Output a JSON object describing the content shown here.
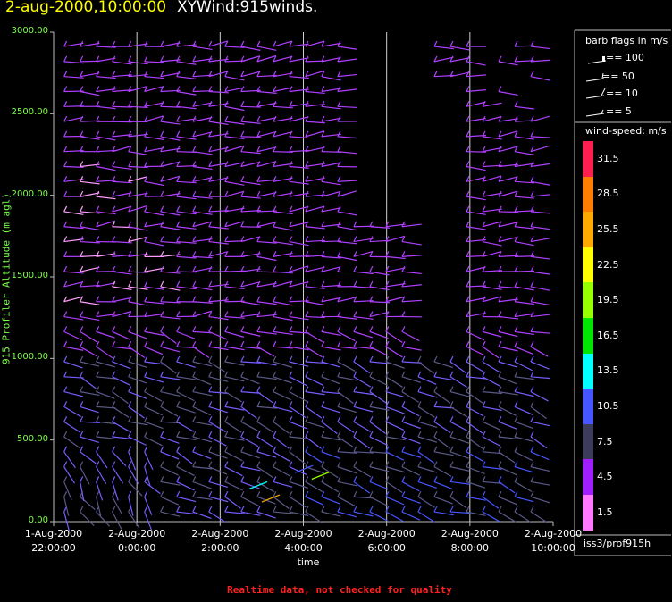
{
  "title": {
    "date": "2-aug-2000,10:00:00",
    "name": "XYWind:915winds."
  },
  "chart_data": {
    "type": "wind-barb",
    "ylabel": "915 Profiler Altitude (m agl)",
    "xlabel": "time",
    "ylim": [
      0,
      3000
    ],
    "y_ticks": [
      "0.00",
      "500.00",
      "1000.00",
      "1500.00",
      "2000.00",
      "2500.00",
      "3000.00"
    ],
    "x_ticks": [
      {
        "line1": "1-Aug-2000",
        "line2": "22:00:00"
      },
      {
        "line1": "2-Aug-2000",
        "line2": "0:00:00"
      },
      {
        "line1": "2-Aug-2000",
        "line2": "2:00:00"
      },
      {
        "line1": "2-Aug-2000",
        "line2": "4:00:00"
      },
      {
        "line1": "2-Aug-2000",
        "line2": "6:00:00"
      },
      {
        "line1": "2-Aug-2000",
        "line2": "8:00:00"
      },
      {
        "line1": "2-Aug-2000",
        "line2": "10:00:00"
      }
    ],
    "xlim_hours_from_22": [
      0,
      12
    ],
    "grid": "vertical lines at 2-hour ticks",
    "barb_flags": {
      "title": "barb flags in m/s",
      "entries": [
        "== 100",
        "== 50",
        "== 10",
        "== 5"
      ]
    },
    "color_scale": {
      "title": "wind-speed: m/s",
      "levels": [
        {
          "label": "31.5",
          "color": "#ff1e50"
        },
        {
          "label": "28.5",
          "color": "#ff7d00"
        },
        {
          "label": "25.5",
          "color": "#ffaa00"
        },
        {
          "label": "22.5",
          "color": "#ffff00"
        },
        {
          "label": "19.5",
          "color": "#96ff00"
        },
        {
          "label": "16.5",
          "color": "#00e600"
        },
        {
          "label": "13.5",
          "color": "#00ffff"
        },
        {
          "label": "10.5",
          "color": "#4655ff"
        },
        {
          "label": "7.5",
          "color": "#3c3c5a"
        },
        {
          "label": "4.5",
          "color": "#a01eff"
        },
        {
          "label": "1.5",
          "color": "#ff78ff"
        }
      ]
    },
    "barb_color": "#b040ff",
    "source": "iss3/prof915h"
  },
  "footer": "Realtime data, not checked for quality"
}
